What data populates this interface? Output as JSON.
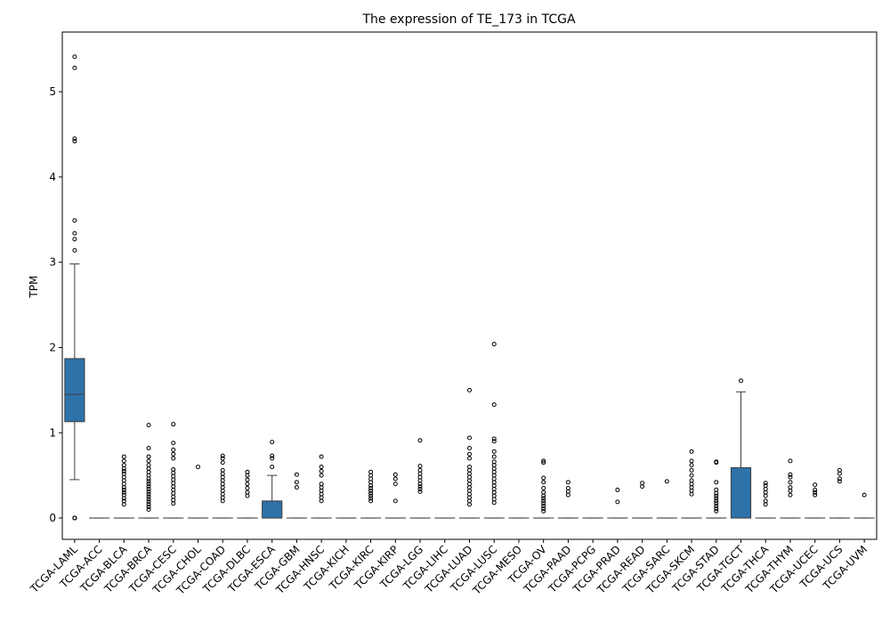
{
  "chart_data": {
    "type": "box",
    "title": "The expression of TE_173 in TCGA",
    "xlabel": "",
    "ylabel": "TPM",
    "ylim": [
      -0.25,
      5.7
    ],
    "yticks": [
      0,
      1,
      2,
      3,
      4,
      5
    ],
    "box_color": "#2e72aa",
    "categories": [
      "TCGA-LAML",
      "TCGA-ACC",
      "TCGA-BLCA",
      "TCGA-BRCA",
      "TCGA-CESC",
      "TCGA-CHOL",
      "TCGA-COAD",
      "TCGA-DLBC",
      "TCGA-ESCA",
      "TCGA-GBM",
      "TCGA-HNSC",
      "TCGA-KICH",
      "TCGA-KIRC",
      "TCGA-KIRP",
      "TCGA-LGG",
      "TCGA-LIHC",
      "TCGA-LUAD",
      "TCGA-LUSC",
      "TCGA-MESO",
      "TCGA-OV",
      "TCGA-PAAD",
      "TCGA-PCPG",
      "TCGA-PRAD",
      "TCGA-READ",
      "TCGA-SARC",
      "TCGA-SKCM",
      "TCGA-STAD",
      "TCGA-TGCT",
      "TCGA-THCA",
      "TCGA-THYM",
      "TCGA-UCEC",
      "TCGA-UCS",
      "TCGA-UVM"
    ],
    "boxes": [
      {
        "q1": 1.13,
        "median": 1.45,
        "q3": 1.87,
        "wlow": 0.45,
        "whigh": 2.98,
        "outliers": [
          0,
          0,
          0,
          3.14,
          3.27,
          3.34,
          3.49,
          4.42,
          4.45,
          5.28,
          5.41
        ]
      },
      {
        "q1": 0,
        "median": 0,
        "q3": 0,
        "wlow": 0,
        "whigh": 0,
        "outliers": []
      },
      {
        "q1": 0,
        "median": 0,
        "q3": 0,
        "wlow": 0,
        "whigh": 0,
        "outliers": [
          0.16,
          0.2,
          0.23,
          0.27,
          0.3,
          0.33,
          0.36,
          0.4,
          0.44,
          0.48,
          0.52,
          0.55,
          0.58,
          0.62,
          0.67,
          0.72
        ]
      },
      {
        "q1": 0,
        "median": 0,
        "q3": 0,
        "wlow": 0,
        "whigh": 0,
        "outliers": [
          0.1,
          0.13,
          0.16,
          0.19,
          0.22,
          0.25,
          0.28,
          0.31,
          0.34,
          0.37,
          0.4,
          0.43,
          0.46,
          0.5,
          0.54,
          0.58,
          0.62,
          0.67,
          0.72,
          0.82,
          1.09
        ]
      },
      {
        "q1": 0,
        "median": 0,
        "q3": 0,
        "wlow": 0,
        "whigh": 0,
        "outliers": [
          0.17,
          0.21,
          0.25,
          0.29,
          0.33,
          0.37,
          0.41,
          0.45,
          0.49,
          0.53,
          0.57,
          0.7,
          0.75,
          0.8,
          0.88,
          1.1
        ]
      },
      {
        "q1": 0,
        "median": 0,
        "q3": 0,
        "wlow": 0,
        "whigh": 0,
        "outliers": [
          0.6
        ]
      },
      {
        "q1": 0,
        "median": 0,
        "q3": 0,
        "wlow": 0,
        "whigh": 0,
        "outliers": [
          0.2,
          0.24,
          0.28,
          0.32,
          0.36,
          0.4,
          0.44,
          0.48,
          0.52,
          0.56,
          0.65,
          0.7,
          0.73
        ]
      },
      {
        "q1": 0,
        "median": 0,
        "q3": 0,
        "wlow": 0,
        "whigh": 0,
        "outliers": [
          0.26,
          0.3,
          0.35,
          0.4,
          0.45,
          0.5,
          0.54
        ]
      },
      {
        "q1": 0,
        "median": 0,
        "q3": 0.2,
        "wlow": 0,
        "whigh": 0.5,
        "outliers": [
          0.6,
          0.7,
          0.73,
          0.89
        ]
      },
      {
        "q1": 0,
        "median": 0,
        "q3": 0,
        "wlow": 0,
        "whigh": 0,
        "outliers": [
          0.36,
          0.42,
          0.51
        ]
      },
      {
        "q1": 0,
        "median": 0,
        "q3": 0,
        "wlow": 0,
        "whigh": 0,
        "outliers": [
          0.2,
          0.24,
          0.28,
          0.32,
          0.36,
          0.4,
          0.5,
          0.55,
          0.6,
          0.72
        ]
      },
      {
        "q1": 0,
        "median": 0,
        "q3": 0,
        "wlow": 0,
        "whigh": 0,
        "outliers": []
      },
      {
        "q1": 0,
        "median": 0,
        "q3": 0,
        "wlow": 0,
        "whigh": 0,
        "outliers": [
          0.2,
          0.23,
          0.26,
          0.29,
          0.32,
          0.35,
          0.38,
          0.42,
          0.46,
          0.5,
          0.54
        ]
      },
      {
        "q1": 0,
        "median": 0,
        "q3": 0,
        "wlow": 0,
        "whigh": 0,
        "outliers": [
          0.2,
          0.4,
          0.46,
          0.51
        ]
      },
      {
        "q1": 0,
        "median": 0,
        "q3": 0,
        "wlow": 0,
        "whigh": 0,
        "outliers": [
          0.31,
          0.34,
          0.37,
          0.4,
          0.44,
          0.48,
          0.52,
          0.56,
          0.61,
          0.91
        ]
      },
      {
        "q1": 0,
        "median": 0,
        "q3": 0,
        "wlow": 0,
        "whigh": 0,
        "outliers": []
      },
      {
        "q1": 0,
        "median": 0,
        "q3": 0,
        "wlow": 0,
        "whigh": 0,
        "outliers": [
          0.16,
          0.2,
          0.24,
          0.28,
          0.32,
          0.36,
          0.4,
          0.44,
          0.48,
          0.52,
          0.56,
          0.6,
          0.7,
          0.75,
          0.82,
          0.94,
          1.5
        ]
      },
      {
        "q1": 0,
        "median": 0,
        "q3": 0,
        "wlow": 0,
        "whigh": 0,
        "outliers": [
          0.18,
          0.22,
          0.26,
          0.3,
          0.34,
          0.38,
          0.42,
          0.46,
          0.5,
          0.54,
          0.58,
          0.62,
          0.66,
          0.72,
          0.78,
          0.9,
          0.93,
          1.33,
          2.04
        ]
      },
      {
        "q1": 0,
        "median": 0,
        "q3": 0,
        "wlow": 0,
        "whigh": 0,
        "outliers": []
      },
      {
        "q1": 0,
        "median": 0,
        "q3": 0,
        "wlow": 0,
        "whigh": 0,
        "outliers": [
          0.08,
          0.11,
          0.14,
          0.17,
          0.2,
          0.23,
          0.26,
          0.3,
          0.35,
          0.42,
          0.47,
          0.65,
          0.67
        ]
      },
      {
        "q1": 0,
        "median": 0,
        "q3": 0,
        "wlow": 0,
        "whigh": 0,
        "outliers": [
          0.27,
          0.31,
          0.35,
          0.42
        ]
      },
      {
        "q1": 0,
        "median": 0,
        "q3": 0,
        "wlow": 0,
        "whigh": 0,
        "outliers": []
      },
      {
        "q1": 0,
        "median": 0,
        "q3": 0,
        "wlow": 0,
        "whigh": 0,
        "outliers": [
          0.19,
          0.33
        ]
      },
      {
        "q1": 0,
        "median": 0,
        "q3": 0,
        "wlow": 0,
        "whigh": 0,
        "outliers": [
          0.37,
          0.41
        ]
      },
      {
        "q1": 0,
        "median": 0,
        "q3": 0,
        "wlow": 0,
        "whigh": 0,
        "outliers": [
          0.43
        ]
      },
      {
        "q1": 0,
        "median": 0,
        "q3": 0,
        "wlow": 0,
        "whigh": 0,
        "outliers": [
          0.28,
          0.32,
          0.36,
          0.4,
          0.44,
          0.5,
          0.56,
          0.62,
          0.67,
          0.78
        ]
      },
      {
        "q1": 0,
        "median": 0,
        "q3": 0,
        "wlow": 0,
        "whigh": 0,
        "outliers": [
          0.08,
          0.11,
          0.14,
          0.17,
          0.2,
          0.23,
          0.26,
          0.29,
          0.33,
          0.42,
          0.65,
          0.66
        ]
      },
      {
        "q1": 0,
        "median": 0,
        "q3": 0.59,
        "wlow": 0,
        "whigh": 1.48,
        "outliers": [
          1.61
        ]
      },
      {
        "q1": 0,
        "median": 0,
        "q3": 0,
        "wlow": 0,
        "whigh": 0,
        "outliers": [
          0.16,
          0.2,
          0.26,
          0.3,
          0.34,
          0.38,
          0.41
        ]
      },
      {
        "q1": 0,
        "median": 0,
        "q3": 0,
        "wlow": 0,
        "whigh": 0,
        "outliers": [
          0.27,
          0.32,
          0.36,
          0.42,
          0.48,
          0.51,
          0.67
        ]
      },
      {
        "q1": 0,
        "median": 0,
        "q3": 0,
        "wlow": 0,
        "whigh": 0,
        "outliers": [
          0.27,
          0.3,
          0.33,
          0.39
        ]
      },
      {
        "q1": 0,
        "median": 0,
        "q3": 0,
        "wlow": 0,
        "whigh": 0,
        "outliers": [
          0.43,
          0.46,
          0.52,
          0.56
        ]
      },
      {
        "q1": 0,
        "median": 0,
        "q3": 0,
        "wlow": 0,
        "whigh": 0,
        "outliers": [
          0.27
        ]
      }
    ]
  }
}
